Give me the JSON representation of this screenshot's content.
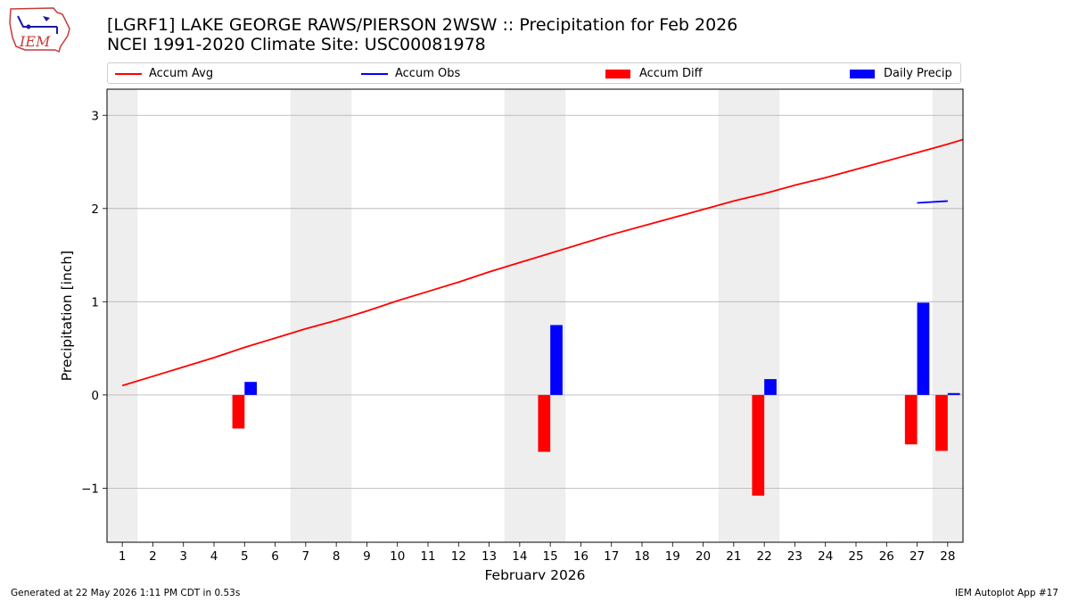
{
  "header": {
    "title_line1": "[LGRF1] LAKE GEORGE RAWS/PIERSON 2WSW :: Precipitation for Feb 2026",
    "title_line2": "NCEI 1991-2020 Climate Site: USC00081978"
  },
  "logo": {
    "text": "IEM"
  },
  "footer": {
    "generated": "Generated at 22 May 2026 1:11 PM CDT in 0.53s",
    "app": "IEM Autoplot App #17"
  },
  "colors": {
    "accum_avg": "#ff0000",
    "accum_obs": "#0000ff",
    "accum_diff": "#ff0000",
    "daily_precip": "#0000ff",
    "weekend_band": "#eeeeee",
    "grid": "#b0b0b0"
  },
  "chart_data": {
    "type": "bar",
    "title": "[LGRF1] LAKE GEORGE RAWS/PIERSON 2WSW :: Precipitation for Feb 2026",
    "subtitle": "NCEI 1991-2020 Climate Site: USC00081978",
    "xlabel": "February 2026",
    "ylabel": "Precipitation [inch]",
    "ylim": [
      -1.58,
      3.28
    ],
    "yticks": [
      -1,
      0,
      1,
      2,
      3
    ],
    "ytick_labels": [
      "−1",
      "0",
      "1",
      "2",
      "3"
    ],
    "xlim": [
      0.5,
      28.5
    ],
    "categories": [
      "1",
      "2",
      "3",
      "4",
      "5",
      "6",
      "7",
      "8",
      "9",
      "10",
      "11",
      "12",
      "13",
      "14",
      "15",
      "16",
      "17",
      "18",
      "19",
      "20",
      "21",
      "22",
      "23",
      "24",
      "25",
      "26",
      "27",
      "28"
    ],
    "grid": "horizontal",
    "legend_position": "top",
    "shaded_days": [
      1,
      7,
      8,
      14,
      15,
      21,
      22,
      28
    ],
    "series": [
      {
        "name": "Accum Avg",
        "kind": "line",
        "x": [
          1,
          2,
          3,
          4,
          5,
          6,
          7,
          8,
          9,
          10,
          11,
          12,
          13,
          14,
          15,
          16,
          17,
          18,
          19,
          20,
          21,
          22,
          23,
          24,
          25,
          26,
          27,
          28,
          28.5
        ],
        "values": [
          0.1,
          0.2,
          0.3,
          0.4,
          0.51,
          0.61,
          0.71,
          0.8,
          0.9,
          1.01,
          1.11,
          1.21,
          1.32,
          1.42,
          1.52,
          1.62,
          1.72,
          1.81,
          1.9,
          1.99,
          2.08,
          2.16,
          2.25,
          2.33,
          2.42,
          2.51,
          2.6,
          2.69,
          2.74
        ]
      },
      {
        "name": "Accum Obs",
        "kind": "line",
        "x": [
          27,
          28
        ],
        "values": [
          2.06,
          2.08
        ]
      },
      {
        "name": "Accum Diff",
        "kind": "bar",
        "offset": -0.2,
        "x": [
          5,
          15,
          22,
          27,
          28
        ],
        "values": [
          -0.36,
          -0.61,
          -1.08,
          -0.53,
          -0.6
        ]
      },
      {
        "name": "Daily Precip",
        "kind": "bar",
        "offset": 0.2,
        "x": [
          5,
          15,
          22,
          27,
          28
        ],
        "values": [
          0.14,
          0.75,
          0.17,
          0.99,
          0.02
        ]
      }
    ]
  }
}
